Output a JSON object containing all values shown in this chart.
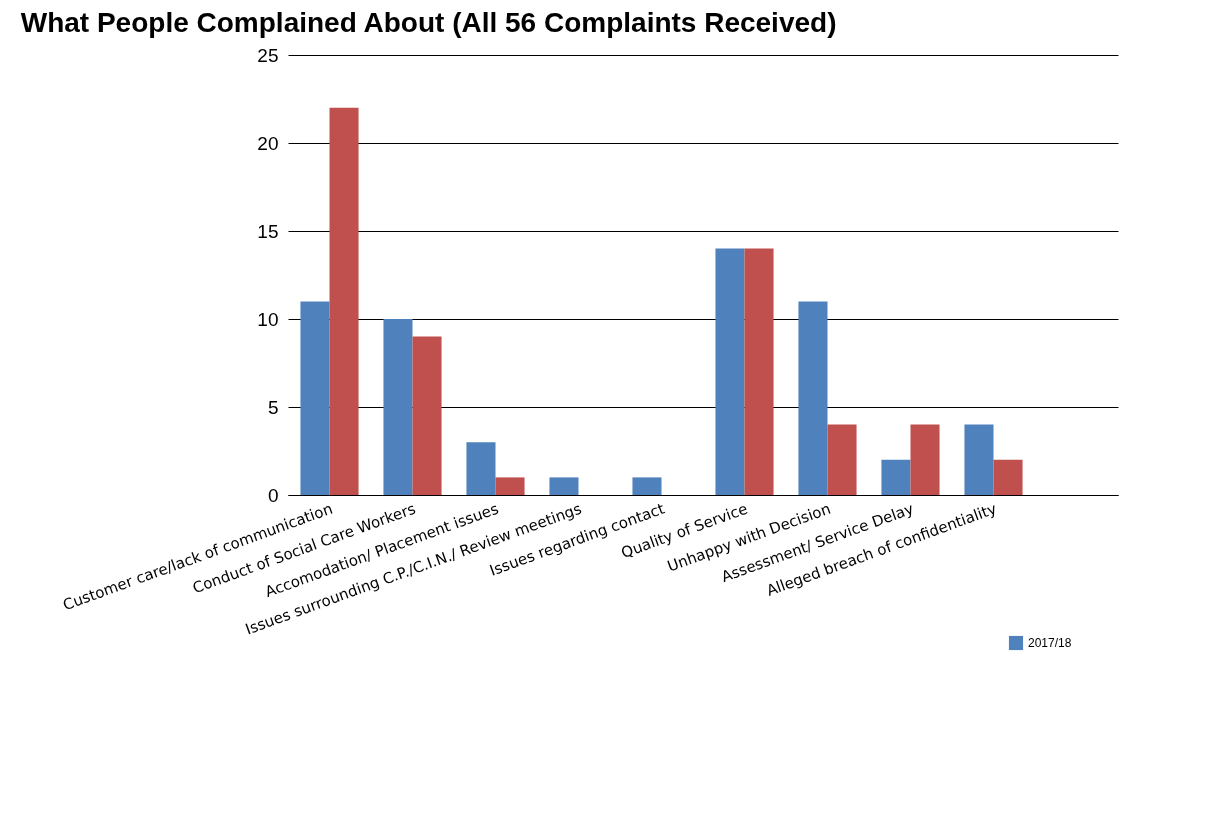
{
  "chart_data": {
    "type": "bar",
    "title": "What People Complained About (All 56 Complaints Received)",
    "categories": [
      "Customer care/lack of communication",
      "Conduct of Social Care Workers",
      "Accomodation/ Placement issues",
      "Issues surrounding C.P./C.I.N./ Review meetings",
      "Issues regarding contact",
      "Quality of Service",
      "Unhappy with Decision",
      "Assessment/ Service Delay",
      "Alleged breach of confidentiality",
      null
    ],
    "series": [
      {
        "name": "2017/18",
        "color": "#4f81bd",
        "values": [
          11,
          10,
          3,
          1,
          1,
          14,
          11,
          2,
          4,
          null
        ]
      },
      {
        "color": "#c0504d",
        "values": [
          22,
          9,
          1,
          0,
          0,
          14,
          4,
          4,
          2,
          null
        ]
      }
    ],
    "ylim": [
      0,
      25
    ],
    "yticks": [
      0,
      5,
      10,
      15,
      20,
      25
    ],
    "grid": "y",
    "legend": "bottom right"
  }
}
